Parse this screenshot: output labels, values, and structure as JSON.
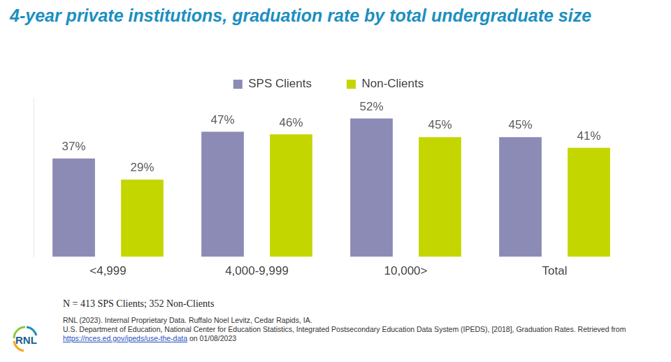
{
  "chart_data": {
    "type": "bar",
    "title": "4-year private institutions, graduation rate by total undergraduate size",
    "categories": [
      "<4,999",
      "4,000-9,999",
      "10,000>",
      "Total"
    ],
    "series": [
      {
        "name": "SPS Clients",
        "color": "#8b8bb6",
        "values": [
          37,
          47,
          52,
          45
        ],
        "value_labels": [
          "37%",
          "47%",
          "52%",
          "45%"
        ]
      },
      {
        "name": "Non-Clients",
        "color": "#c4d600",
        "values": [
          29,
          46,
          45,
          41
        ],
        "value_labels": [
          "29%",
          "46%",
          "45%",
          "41%"
        ]
      }
    ],
    "ylim": [
      0,
      60
    ],
    "grid": false,
    "legend": "top",
    "data_labels": true,
    "tick_labels": "x"
  },
  "footnote": "N = 413 SPS Clients; 352 Non-Clients",
  "sources": [
    {
      "text": "RNL (2023). Internal Proprietary Data. Ruffalo Noel Levitz, Cedar Rapids, IA."
    },
    {
      "text": "U.S. Department of Education, National Center for Education Statistics, Integrated Postsecondary Education Data System (IPEDS), [2018], Graduation Rates. Retrieved from ",
      "link": "https://nces.ed.gov/ipeds/use-the-data",
      "after": " on 01/08/2023"
    }
  ],
  "logo": "RNL"
}
